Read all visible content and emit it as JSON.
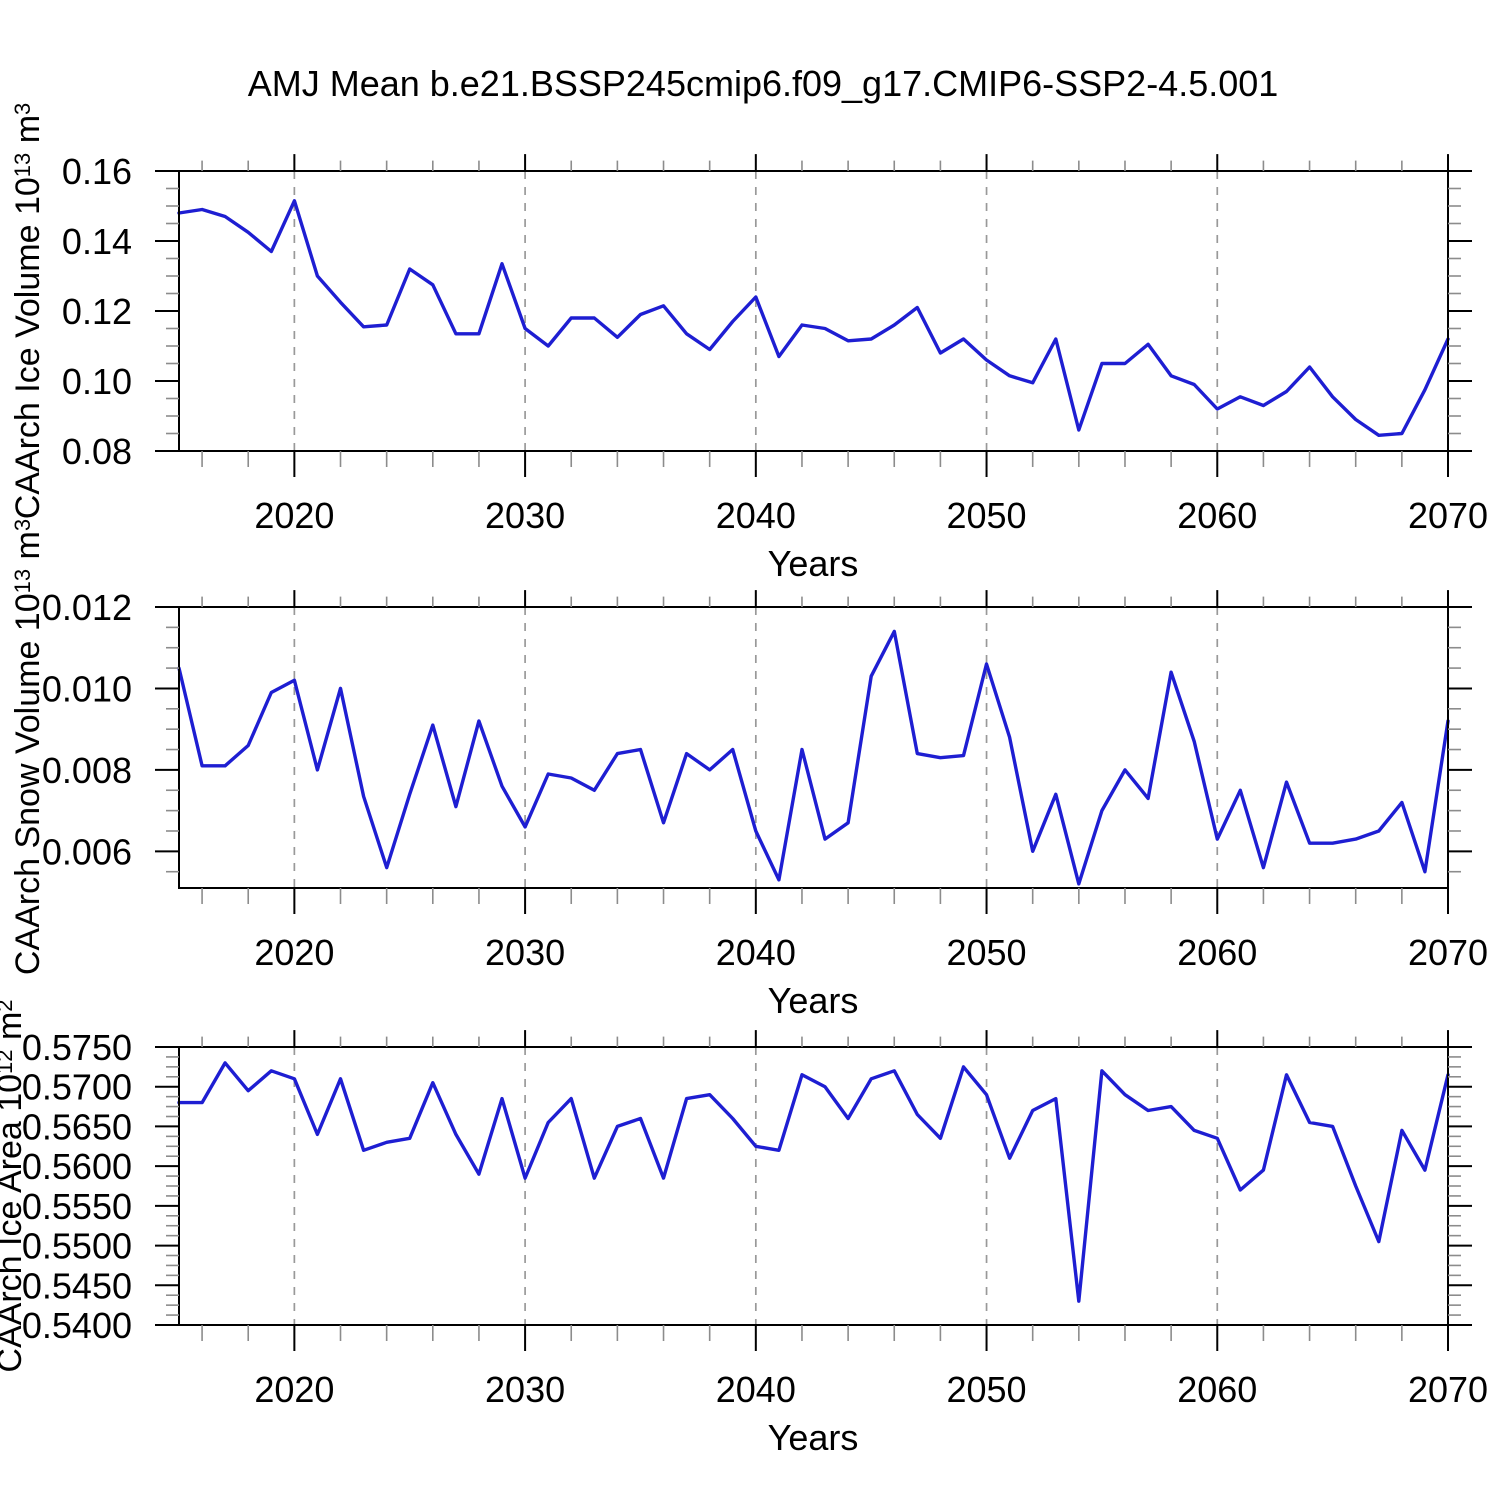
{
  "title": "AMJ Mean b.e21.BSSP245cmip6.f09_g17.CMIP6-SSP2-4.5.001",
  "colors": {
    "line": "#1e1ed2",
    "grid": "#999999",
    "axis": "#000000",
    "minor_tick": "#8c8c8c",
    "text": "#000000",
    "background": "#ffffff"
  },
  "x_axis": {
    "label": "Years",
    "start": 2015,
    "end": 2070,
    "major_ticks": [
      {
        "year": 2020,
        "label": "2020"
      },
      {
        "year": 2030,
        "label": "2030"
      },
      {
        "year": 2040,
        "label": "2040"
      },
      {
        "year": 2050,
        "label": "2050"
      },
      {
        "year": 2060,
        "label": "2060"
      },
      {
        "year": 2070,
        "label": "2070"
      }
    ],
    "minor_step_years": 2,
    "gridline_years": [
      2020,
      2030,
      2040,
      2050,
      2060
    ],
    "grid_style": "dashed"
  },
  "years": [
    2015,
    2016,
    2017,
    2018,
    2019,
    2020,
    2021,
    2022,
    2023,
    2024,
    2025,
    2026,
    2027,
    2028,
    2029,
    2030,
    2031,
    2032,
    2033,
    2034,
    2035,
    2036,
    2037,
    2038,
    2039,
    2040,
    2041,
    2042,
    2043,
    2044,
    2045,
    2046,
    2047,
    2048,
    2049,
    2050,
    2051,
    2052,
    2053,
    2054,
    2055,
    2056,
    2057,
    2058,
    2059,
    2060,
    2061,
    2062,
    2063,
    2064,
    2065,
    2066,
    2067,
    2068,
    2069,
    2070
  ],
  "chart_data": [
    {
      "id": "ice-volume",
      "type": "line",
      "ylabel": {
        "b1": "CAArch Ice Volume 10",
        "s1": "13",
        "b2": " m",
        "s2": "3"
      },
      "ylim_top": 0.16,
      "ylim_bottom": 0.08,
      "yticks": [
        {
          "v": 0.16,
          "label": "0.16"
        },
        {
          "v": 0.14,
          "label": "0.14"
        },
        {
          "v": 0.12,
          "label": "0.12"
        },
        {
          "v": 0.1,
          "label": "0.10"
        },
        {
          "v": 0.08,
          "label": "0.08"
        }
      ],
      "minor_step": 0.005,
      "values": [
        0.148,
        0.149,
        0.147,
        0.1425,
        0.137,
        0.1515,
        0.13,
        0.1225,
        0.1155,
        0.116,
        0.132,
        0.1275,
        0.1135,
        0.1135,
        0.1335,
        0.115,
        0.11,
        0.118,
        0.118,
        0.1125,
        0.119,
        0.1215,
        0.1135,
        0.109,
        0.117,
        0.124,
        0.107,
        0.116,
        0.115,
        0.1115,
        0.112,
        0.116,
        0.121,
        0.108,
        0.112,
        0.106,
        0.1015,
        0.0995,
        0.112,
        0.086,
        0.105,
        0.105,
        0.1105,
        0.1015,
        0.099,
        0.092,
        0.0955,
        0.093,
        0.097,
        0.104,
        0.0955,
        0.089,
        0.0845,
        0.085,
        0.0975,
        0.112
      ]
    },
    {
      "id": "snow-volume",
      "type": "line",
      "ylabel": {
        "b1": "CAArch Snow Volume 10",
        "s1": "13",
        "b2": " m",
        "s2": "3"
      },
      "ylim_top": 0.012,
      "ylim_bottom": 0.0051,
      "yticks": [
        {
          "v": 0.012,
          "label": "0.012"
        },
        {
          "v": 0.01,
          "label": "0.010"
        },
        {
          "v": 0.008,
          "label": "0.008"
        },
        {
          "v": 0.006,
          "label": "0.006"
        }
      ],
      "minor_step": 0.0005,
      "values": [
        0.0105,
        0.0081,
        0.0081,
        0.0086,
        0.0099,
        0.0102,
        0.008,
        0.01,
        0.00735,
        0.0056,
        0.0074,
        0.0091,
        0.0071,
        0.0092,
        0.0076,
        0.0066,
        0.0079,
        0.0078,
        0.0075,
        0.0084,
        0.0085,
        0.0067,
        0.0084,
        0.008,
        0.0085,
        0.0065,
        0.0053,
        0.0085,
        0.0063,
        0.0067,
        0.0103,
        0.0114,
        0.0084,
        0.0083,
        0.00835,
        0.0106,
        0.0088,
        0.006,
        0.0074,
        0.0052,
        0.007,
        0.008,
        0.0073,
        0.0104,
        0.0087,
        0.0063,
        0.0075,
        0.0056,
        0.0077,
        0.0062,
        0.0062,
        0.0063,
        0.0065,
        0.0072,
        0.0055,
        0.0092
      ]
    },
    {
      "id": "ice-area",
      "type": "line",
      "ylabel": {
        "b1": "CAArch Ice Area 10",
        "s1": "12",
        "b2": " m",
        "s2": "2"
      },
      "ylim_top": 0.575,
      "ylim_bottom": 0.54,
      "yticks": [
        {
          "v": 0.575,
          "label": "0.5750"
        },
        {
          "v": 0.57,
          "label": "0.5700"
        },
        {
          "v": 0.565,
          "label": "0.5650"
        },
        {
          "v": 0.56,
          "label": "0.5600"
        },
        {
          "v": 0.555,
          "label": "0.5550"
        },
        {
          "v": 0.55,
          "label": "0.5500"
        },
        {
          "v": 0.545,
          "label": "0.5450"
        },
        {
          "v": 0.54,
          "label": "0.5400"
        }
      ],
      "minor_step": 0.00125,
      "values": [
        0.568,
        0.568,
        0.573,
        0.5695,
        0.572,
        0.571,
        0.564,
        0.571,
        0.562,
        0.563,
        0.5635,
        0.5705,
        0.564,
        0.559,
        0.5685,
        0.5585,
        0.5655,
        0.5685,
        0.5585,
        0.565,
        0.566,
        0.5585,
        0.5685,
        0.569,
        0.566,
        0.5625,
        0.562,
        0.5715,
        0.57,
        0.566,
        0.571,
        0.572,
        0.5665,
        0.5635,
        0.5725,
        0.569,
        0.561,
        0.567,
        0.5685,
        0.543,
        0.572,
        0.569,
        0.567,
        0.5675,
        0.5645,
        0.5635,
        0.557,
        0.5595,
        0.5715,
        0.5655,
        0.565,
        0.5575,
        0.5505,
        0.5645,
        0.5595,
        0.5715
      ]
    }
  ]
}
